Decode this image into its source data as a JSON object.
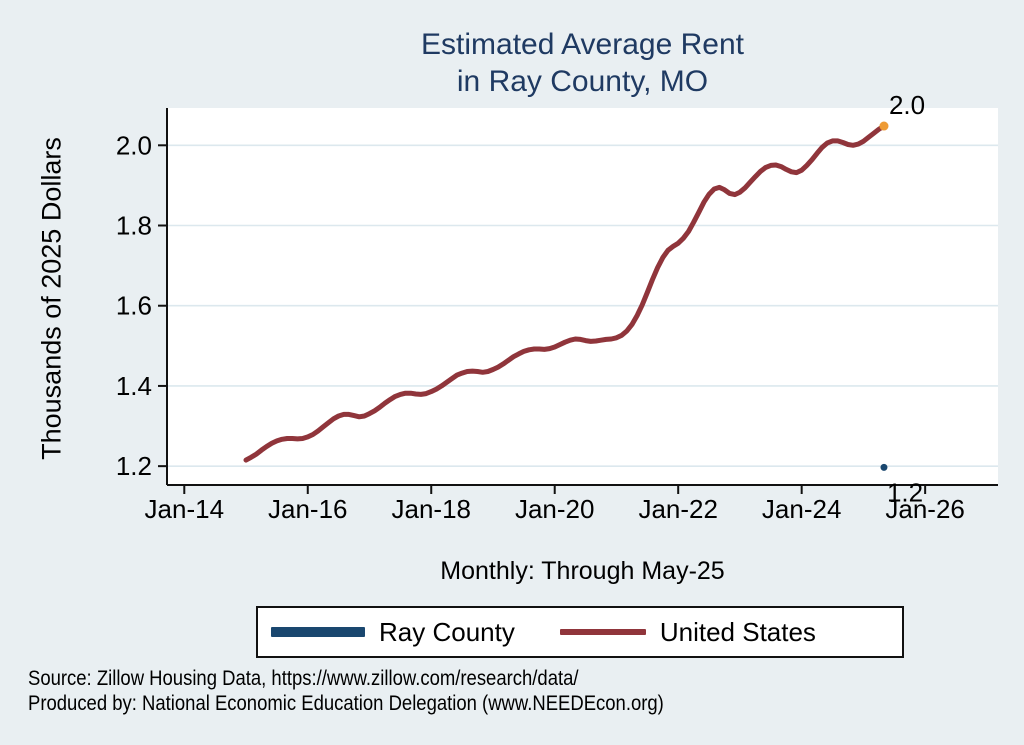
{
  "title": {
    "line1": "Estimated Average Rent",
    "line2": "in Ray County, MO",
    "color": "#1f3a62"
  },
  "subtitle": "Monthly: Through May-25",
  "y_axis_label": "Thousands of 2025 Dollars",
  "legend": {
    "items": [
      {
        "label": "Ray County",
        "color": "#1a476f"
      },
      {
        "label": "United States",
        "color": "#90353b"
      }
    ]
  },
  "source": {
    "line1": "Source: Zillow Housing Data, https://www.zillow.com/research/data/",
    "line2": "Produced by: National Economic Education Delegation (www.NEEDEcon.org)"
  },
  "colors": {
    "background": "#e9eff2",
    "plot_background": "#ffffff",
    "gridline": "#dce8ee",
    "axis": "#111111",
    "title": "#1f3a62",
    "ray_county": "#1a476f",
    "united_states": "#90353b",
    "end_dot": "#ee9b35"
  },
  "chart_data": {
    "type": "line",
    "title": "Estimated Average Rent in Ray County, MO",
    "subtitle": "Monthly: Through May-25",
    "xlabel": "",
    "ylabel": "Thousands of 2025 Dollars",
    "grid": true,
    "legend_position": "bottom",
    "xlim": [
      2013.72,
      2027.18
    ],
    "ylim": [
      1.153,
      2.093
    ],
    "x_ticks": {
      "labels": [
        "Jan-14",
        "Jan-16",
        "Jan-18",
        "Jan-20",
        "Jan-22",
        "Jan-24",
        "Jan-26"
      ],
      "values": [
        2014,
        2016,
        2018,
        2020,
        2022,
        2024,
        2026
      ]
    },
    "y_ticks": {
      "labels": [
        "1.2",
        "1.4",
        "1.6",
        "1.8",
        "2.0"
      ],
      "values": [
        1.2,
        1.4,
        1.6,
        1.8,
        2.0
      ]
    },
    "series": [
      {
        "name": "United States",
        "style": "line",
        "color": "#90353b",
        "line_width": 5,
        "end_dot_color": "#ee9b35",
        "end_label": "2.0",
        "points": [
          [
            2015.0,
            1.215
          ],
          [
            2015.083,
            1.222
          ],
          [
            2015.167,
            1.23
          ],
          [
            2015.25,
            1.24
          ],
          [
            2015.333,
            1.249
          ],
          [
            2015.417,
            1.257
          ],
          [
            2015.5,
            1.263
          ],
          [
            2015.583,
            1.267
          ],
          [
            2015.667,
            1.269
          ],
          [
            2015.75,
            1.269
          ],
          [
            2015.833,
            1.268
          ],
          [
            2015.917,
            1.269
          ],
          [
            2016.0,
            1.273
          ],
          [
            2016.083,
            1.279
          ],
          [
            2016.167,
            1.288
          ],
          [
            2016.25,
            1.298
          ],
          [
            2016.333,
            1.308
          ],
          [
            2016.417,
            1.318
          ],
          [
            2016.5,
            1.325
          ],
          [
            2016.583,
            1.329
          ],
          [
            2016.667,
            1.329
          ],
          [
            2016.75,
            1.326
          ],
          [
            2016.833,
            1.323
          ],
          [
            2016.917,
            1.325
          ],
          [
            2017.0,
            1.331
          ],
          [
            2017.083,
            1.338
          ],
          [
            2017.167,
            1.347
          ],
          [
            2017.25,
            1.357
          ],
          [
            2017.333,
            1.366
          ],
          [
            2017.417,
            1.374
          ],
          [
            2017.5,
            1.379
          ],
          [
            2017.583,
            1.382
          ],
          [
            2017.667,
            1.382
          ],
          [
            2017.75,
            1.38
          ],
          [
            2017.833,
            1.379
          ],
          [
            2017.917,
            1.381
          ],
          [
            2018.0,
            1.386
          ],
          [
            2018.083,
            1.392
          ],
          [
            2018.167,
            1.4
          ],
          [
            2018.25,
            1.409
          ],
          [
            2018.333,
            1.418
          ],
          [
            2018.417,
            1.427
          ],
          [
            2018.5,
            1.432
          ],
          [
            2018.583,
            1.436
          ],
          [
            2018.667,
            1.437
          ],
          [
            2018.75,
            1.436
          ],
          [
            2018.833,
            1.434
          ],
          [
            2018.917,
            1.436
          ],
          [
            2019.0,
            1.441
          ],
          [
            2019.083,
            1.447
          ],
          [
            2019.167,
            1.455
          ],
          [
            2019.25,
            1.464
          ],
          [
            2019.333,
            1.473
          ],
          [
            2019.417,
            1.48
          ],
          [
            2019.5,
            1.486
          ],
          [
            2019.583,
            1.49
          ],
          [
            2019.667,
            1.492
          ],
          [
            2019.75,
            1.492
          ],
          [
            2019.833,
            1.491
          ],
          [
            2019.917,
            1.493
          ],
          [
            2020.0,
            1.497
          ],
          [
            2020.083,
            1.503
          ],
          [
            2020.167,
            1.509
          ],
          [
            2020.25,
            1.514
          ],
          [
            2020.333,
            1.517
          ],
          [
            2020.417,
            1.516
          ],
          [
            2020.5,
            1.513
          ],
          [
            2020.583,
            1.511
          ],
          [
            2020.667,
            1.512
          ],
          [
            2020.75,
            1.514
          ],
          [
            2020.833,
            1.516
          ],
          [
            2020.917,
            1.517
          ],
          [
            2021.0,
            1.52
          ],
          [
            2021.083,
            1.526
          ],
          [
            2021.167,
            1.537
          ],
          [
            2021.25,
            1.553
          ],
          [
            2021.333,
            1.575
          ],
          [
            2021.417,
            1.602
          ],
          [
            2021.5,
            1.633
          ],
          [
            2021.583,
            1.665
          ],
          [
            2021.667,
            1.695
          ],
          [
            2021.75,
            1.72
          ],
          [
            2021.833,
            1.738
          ],
          [
            2021.917,
            1.748
          ],
          [
            2022.0,
            1.756
          ],
          [
            2022.083,
            1.768
          ],
          [
            2022.167,
            1.785
          ],
          [
            2022.25,
            1.808
          ],
          [
            2022.333,
            1.833
          ],
          [
            2022.417,
            1.858
          ],
          [
            2022.5,
            1.878
          ],
          [
            2022.583,
            1.891
          ],
          [
            2022.667,
            1.895
          ],
          [
            2022.75,
            1.889
          ],
          [
            2022.833,
            1.88
          ],
          [
            2022.917,
            1.877
          ],
          [
            2023.0,
            1.883
          ],
          [
            2023.083,
            1.894
          ],
          [
            2023.167,
            1.908
          ],
          [
            2023.25,
            1.922
          ],
          [
            2023.333,
            1.935
          ],
          [
            2023.417,
            1.945
          ],
          [
            2023.5,
            1.95
          ],
          [
            2023.583,
            1.951
          ],
          [
            2023.667,
            1.947
          ],
          [
            2023.75,
            1.94
          ],
          [
            2023.833,
            1.934
          ],
          [
            2023.917,
            1.932
          ],
          [
            2024.0,
            1.938
          ],
          [
            2024.083,
            1.95
          ],
          [
            2024.167,
            1.964
          ],
          [
            2024.25,
            1.98
          ],
          [
            2024.333,
            1.995
          ],
          [
            2024.417,
            2.006
          ],
          [
            2024.5,
            2.011
          ],
          [
            2024.583,
            2.011
          ],
          [
            2024.667,
            2.007
          ],
          [
            2024.75,
            2.002
          ],
          [
            2024.833,
            2.0
          ],
          [
            2024.917,
            2.003
          ],
          [
            2025.0,
            2.01
          ],
          [
            2025.083,
            2.02
          ],
          [
            2025.167,
            2.03
          ],
          [
            2025.25,
            2.04
          ],
          [
            2025.333,
            2.048
          ]
        ]
      },
      {
        "name": "Ray County",
        "style": "point",
        "color": "#1a476f",
        "dot_radius": 3.5,
        "end_label": "1.2",
        "points": [
          [
            2025.333,
            1.197
          ]
        ]
      }
    ]
  }
}
